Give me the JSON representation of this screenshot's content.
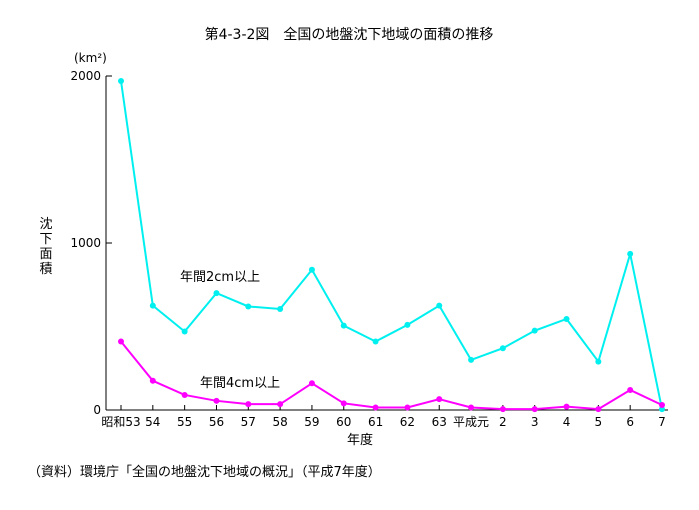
{
  "chart_data": {
    "type": "line",
    "title": "第4-3-2図　全国の地盤沈下地域の面積の推移",
    "unit_label": "(km²)",
    "ylabel": "沈下面積",
    "xlabel": "年度",
    "source": "（資料）環境庁「全国の地盤沈下地域の概況」（平成7年度）",
    "categories": [
      "昭和53",
      "54",
      "55",
      "56",
      "57",
      "58",
      "59",
      "60",
      "61",
      "62",
      "63",
      "平成元",
      "2",
      "3",
      "4",
      "5",
      "6",
      "7"
    ],
    "ylim": [
      0,
      2000
    ],
    "yticks": [
      "0",
      "1000",
      "2000"
    ],
    "grid": false,
    "series": [
      {
        "name": "年間2cm以上",
        "color": "#00f0f0",
        "values": [
          1970,
          625,
          470,
          700,
          620,
          605,
          840,
          505,
          410,
          510,
          625,
          300,
          370,
          475,
          545,
          290,
          935,
          5
        ]
      },
      {
        "name": "年間4cm以上",
        "color": "#ff00ff",
        "values": [
          410,
          175,
          90,
          55,
          35,
          35,
          160,
          40,
          15,
          15,
          65,
          15,
          5,
          5,
          20,
          5,
          120,
          30
        ]
      }
    ]
  }
}
